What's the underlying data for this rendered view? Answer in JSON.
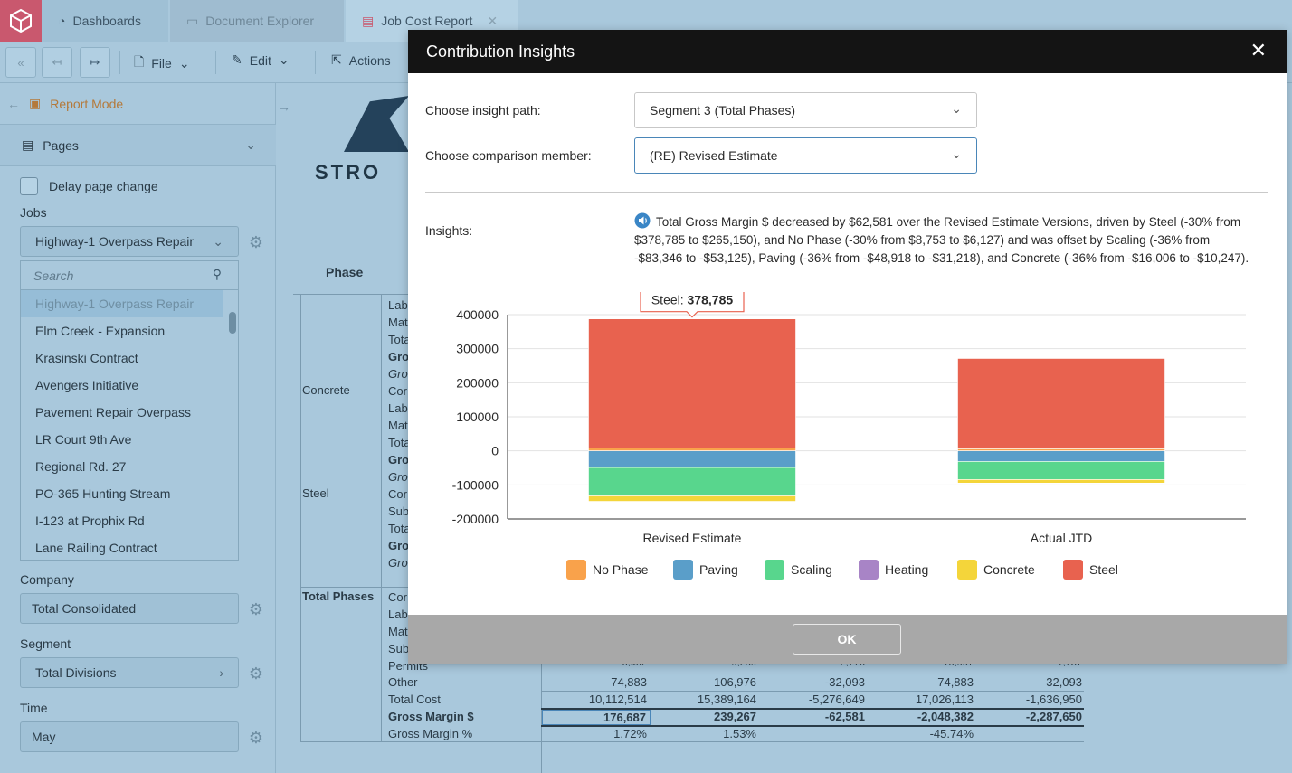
{
  "tabs": [
    {
      "label": "Dashboards",
      "icon": "dashboard-icon"
    },
    {
      "label": "Document Explorer",
      "icon": "folder-icon"
    },
    {
      "label": "Job Cost Report",
      "icon": "report-icon"
    }
  ],
  "toolbar": {
    "file": "File",
    "edit": "Edit",
    "actions": "Actions"
  },
  "sidebar": {
    "report_mode": "Report Mode",
    "pages": "Pages",
    "delay_page_change": "Delay page change",
    "jobs_label": "Jobs",
    "jobs_selected": "Highway-1 Overpass Repair",
    "search_placeholder": "Search",
    "jobs": [
      "Highway-1 Overpass Repair",
      "Elm Creek - Expansion",
      "Krasinski Contract",
      "Avengers Initiative",
      "Pavement Repair Overpass",
      "LR Court 9th Ave",
      "Regional Rd. 27",
      "PO-365 Hunting Stream",
      "I-123 at Prophix Rd",
      "Lane Railing Contract"
    ],
    "company_label": "Company",
    "company_value": "Total Consolidated",
    "segment_label": "Segment",
    "segment_value": "Total Divisions",
    "time_label": "Time",
    "time_value": "May"
  },
  "report": {
    "logo_text": "STRO",
    "phase_header": "Phase",
    "groups": [
      "Concrete",
      "Steel",
      "Total Phases"
    ],
    "row_stubs": [
      "Lab",
      "Mat",
      "Tota",
      "Gro",
      "Gro",
      "Cor",
      "Lab",
      "Mat",
      "Tota",
      "Gro",
      "Gro",
      "Cor",
      "Sub",
      "Tota",
      "Gro",
      "Gro",
      "Cor",
      "Lab",
      "Mat",
      "Sub",
      "Permits"
    ],
    "rows": [
      {
        "label": "Other",
        "values": [
          "74,883",
          "106,976",
          "-32,093",
          "74,883",
          "32,093"
        ],
        "bold": false
      },
      {
        "label": "Total Cost",
        "values": [
          "10,112,514",
          "15,389,164",
          "-5,276,649",
          "17,026,113",
          "-1,636,950"
        ],
        "bold": false
      },
      {
        "label": "Gross Margin $",
        "values": [
          "176,687",
          "239,267",
          "-62,581",
          "-2,048,382",
          "-2,287,650"
        ],
        "bold": true
      },
      {
        "label": "Gross Margin %",
        "values": [
          "1.72%",
          "1.53%",
          "",
          "-45.74%",
          ""
        ],
        "bold": false
      }
    ],
    "partial_row": [
      "6,462",
      "9,259",
      "2,776",
      "10,997",
      "1,737"
    ]
  },
  "modal": {
    "title": "Contribution Insights",
    "insight_path_label": "Choose insight path:",
    "insight_path_value": "Segment 3 (Total Phases)",
    "comparison_label": "Choose comparison member:",
    "comparison_value": "(RE) Revised Estimate",
    "insights_label": "Insights:",
    "insight_text": "Total Gross Margin $ decreased by $62,581 over the Revised Estimate Versions, driven by Steel (-30% from $378,785 to $265,150), and No Phase (-30% from $8,753 to $6,127) and was offset by Scaling (-36% from -$83,346 to -$53,125), Paving (-36% from -$48,918 to -$31,218), and Concrete (-36% from -$16,006 to -$10,247).",
    "tooltip_label": "Steel:",
    "tooltip_value": "378,785",
    "ok": "OK"
  },
  "chart_data": {
    "type": "bar",
    "stacked": true,
    "categories": [
      "Revised Estimate",
      "Actual JTD"
    ],
    "series": [
      {
        "name": "No Phase",
        "color": "#f9a24b",
        "values": [
          8753,
          6127
        ]
      },
      {
        "name": "Paving",
        "color": "#5a9ec9",
        "values": [
          -48918,
          -31218
        ]
      },
      {
        "name": "Scaling",
        "color": "#58d68d",
        "values": [
          -83346,
          -53125
        ]
      },
      {
        "name": "Heating",
        "color": "#a884c6",
        "values": [
          0,
          0
        ]
      },
      {
        "name": "Concrete",
        "color": "#f4d53a",
        "values": [
          -16006,
          -10247
        ]
      },
      {
        "name": "Steel",
        "color": "#e8624f",
        "values": [
          378785,
          265150
        ]
      }
    ],
    "ylim": [
      -200000,
      400000
    ],
    "yticks": [
      400000,
      300000,
      200000,
      100000,
      0,
      -100000,
      -200000
    ],
    "grid": true,
    "legend": "bottom"
  }
}
